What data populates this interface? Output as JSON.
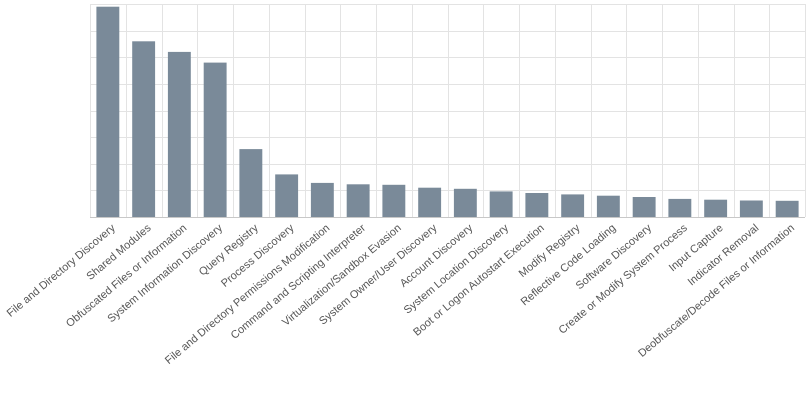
{
  "chart_data": {
    "type": "bar",
    "title": "",
    "xlabel": "",
    "ylabel": "",
    "ylim": [
      0,
      8
    ],
    "grid": true,
    "bar_color": "#7a8a99",
    "categories": [
      "File and Directory Discovery",
      "Shared Modules",
      "Obfuscated Files or Information",
      "System Information Discovery",
      "Query Registry",
      "Process Discovery",
      "File and Directory Permissions Modification",
      "Command and Scripting Interpreter",
      "Virtualization/Sandbox Evasion",
      "System Owner/User Discovery",
      "Account Discovery",
      "System Location Discovery",
      "Boot or Logon Autostart Execution",
      "Modify Registry",
      "Reflective Code Loading",
      "Software Discovery",
      "Create or Modify System Process",
      "Input Capture",
      "Indicator Removal",
      "Deobfuscate/Decode Files or Information"
    ],
    "values": [
      7.9,
      6.6,
      6.2,
      5.8,
      2.55,
      1.6,
      1.28,
      1.23,
      1.21,
      1.1,
      1.06,
      0.96,
      0.9,
      0.85,
      0.8,
      0.75,
      0.68,
      0.65,
      0.62,
      0.61
    ]
  }
}
